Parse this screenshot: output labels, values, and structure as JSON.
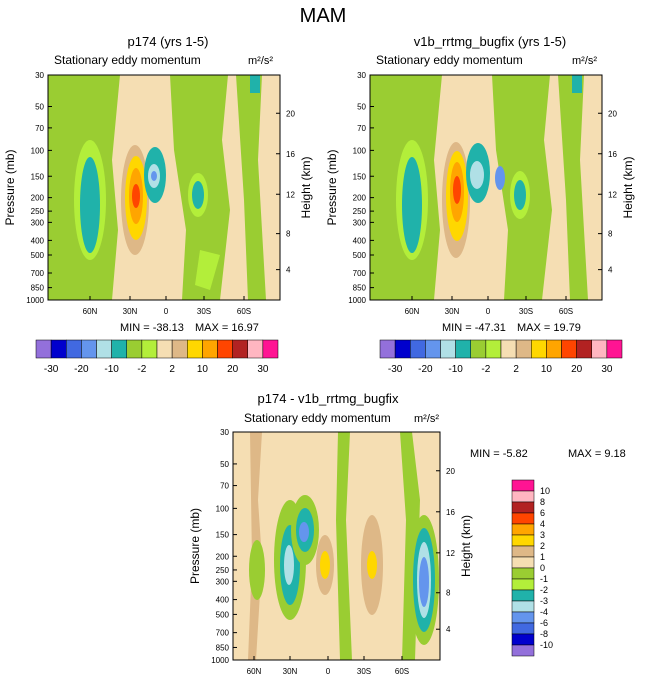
{
  "page_title": "MAM",
  "colors": {
    "series": [
      "#9370db",
      "#0000cd",
      "#4169e1",
      "#6495ed",
      "#b0e0e6",
      "#20b2aa",
      "#9acd32",
      "#b3ee3a",
      "#f5deb3",
      "#deb887",
      "#ffd700",
      "#ffa500",
      "#ff4500",
      "#b22222",
      "#ffb6c1",
      "#ff1493"
    ]
  },
  "chart_data": [
    {
      "type": "heatmap",
      "title": "p174 (yrs 1-5)",
      "subtitle": "Stationary eddy momentum",
      "units": "m²/s²",
      "ylabel": "Pressure (mb)",
      "ylabel_right": "Height (km)",
      "x_ticks": [
        "60N",
        "30N",
        "0",
        "30S",
        "60S"
      ],
      "y_ticks": [
        "30",
        "50",
        "70",
        "100",
        "150",
        "200",
        "250",
        "300",
        "400",
        "500",
        "700",
        "850",
        "1000"
      ],
      "y_ticks_right": [
        "20",
        "16",
        "12",
        "8",
        "4"
      ],
      "min_label": "MIN = -38.13",
      "max_label": "MAX =  16.97",
      "colorbar_labels": [
        "-30",
        "-20",
        "-10",
        "-2",
        "2",
        "10",
        "20",
        "30"
      ]
    },
    {
      "type": "heatmap",
      "title": "v1b_rrtmg_bugfix (yrs 1-5)",
      "subtitle": "Stationary eddy momentum",
      "units": "m²/s²",
      "ylabel": "Pressure (mb)",
      "ylabel_right": "Height (km)",
      "x_ticks": [
        "60N",
        "30N",
        "0",
        "30S",
        "60S"
      ],
      "y_ticks": [
        "30",
        "50",
        "70",
        "100",
        "150",
        "200",
        "250",
        "300",
        "400",
        "500",
        "700",
        "850",
        "1000"
      ],
      "y_ticks_right": [
        "20",
        "16",
        "12",
        "8",
        "4"
      ],
      "min_label": "MIN = -47.31",
      "max_label": "MAX =  19.79",
      "colorbar_labels": [
        "-30",
        "-20",
        "-10",
        "-2",
        "2",
        "10",
        "20",
        "30"
      ]
    },
    {
      "type": "heatmap",
      "title": "p174 - v1b_rrtmg_bugfix",
      "subtitle": "Stationary eddy momentum",
      "units": "m²/s²",
      "ylabel": "Pressure (mb)",
      "ylabel_right": "Height (km)",
      "x_ticks": [
        "60N",
        "30N",
        "0",
        "30S",
        "60S"
      ],
      "y_ticks": [
        "30",
        "50",
        "70",
        "100",
        "150",
        "200",
        "250",
        "300",
        "400",
        "500",
        "700",
        "850",
        "1000"
      ],
      "y_ticks_right": [
        "20",
        "16",
        "12",
        "8",
        "4"
      ],
      "min_label": "MIN =  -5.82",
      "max_label": "MAX =   9.18",
      "colorbar_labels": [
        "10",
        "8",
        "6",
        "4",
        "3",
        "2",
        "1",
        "0",
        "-1",
        "-2",
        "-3",
        "-4",
        "-6",
        "-8",
        "-10"
      ]
    }
  ]
}
